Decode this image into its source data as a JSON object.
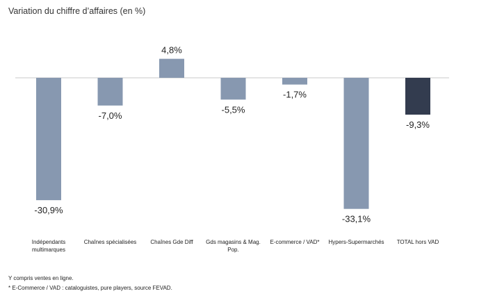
{
  "chart_data": {
    "type": "bar",
    "title": "Variation du chiffre d’affaires (en %)",
    "categories": [
      [
        "Indépendants",
        "multimarques"
      ],
      [
        "Chaînes spécialisées"
      ],
      [
        "Chaînes Gde Diff"
      ],
      [
        "Gds magasins & Mag.",
        "Pop."
      ],
      [
        "E-commerce / VAD*"
      ],
      [
        "Hypers-Supermarchés"
      ],
      [
        "TOTAL hors VAD"
      ]
    ],
    "values": [
      -30.9,
      -7.0,
      4.8,
      -5.5,
      -1.7,
      -33.1,
      -9.3
    ],
    "value_labels": [
      "-30,9%",
      "-7,0%",
      "4,8%",
      "-5,5%",
      "-1,7%",
      "-33,1%",
      "-9,3%"
    ],
    "ylim": [
      -40,
      10
    ],
    "grid": false,
    "legend": "none",
    "colors": {
      "bar": "#8798b0",
      "highlight_bar": "#333c4f",
      "axis": "#c8c8c8"
    },
    "highlight_index": 6
  },
  "notes": [
    "Y compris ventes en ligne.",
    "* E-Commerce / VAD : cataloguistes, pure players, source FEVAD."
  ]
}
